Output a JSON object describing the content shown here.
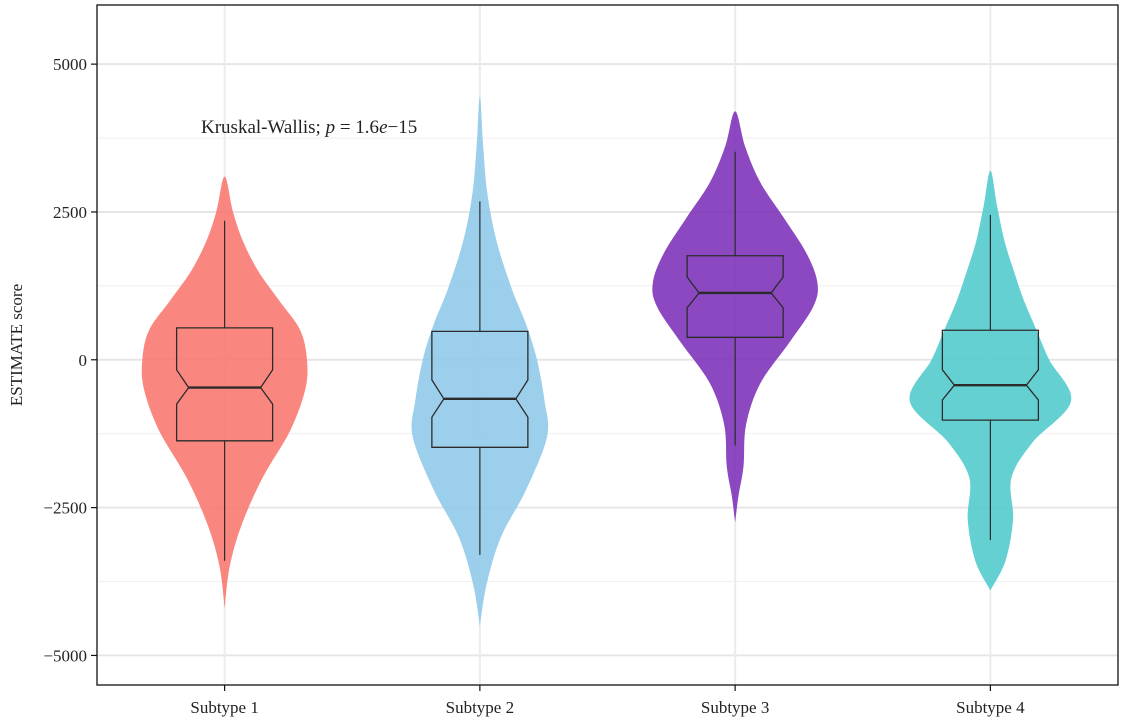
{
  "chart_data": {
    "type": "violin",
    "ylabel": "ESTIMATE score",
    "ylim": [
      -5500,
      6000
    ],
    "yticks": [
      5000,
      2500,
      0,
      -2500,
      -5000
    ],
    "ytick_labels": [
      "5000",
      "2500",
      "0",
      "−2500",
      "−5000"
    ],
    "categories": [
      "Subtype 1",
      "Subtype 2",
      "Subtype 3",
      "Subtype 4"
    ],
    "grid": true,
    "annotation": {
      "prefix": "Kruskal-Wallis; ",
      "p_symbol": "p",
      "middle": " = 1.6",
      "e_symbol": "e",
      "suffix": "−15"
    },
    "series": [
      {
        "name": "Subtype 1",
        "color": "#F8766D",
        "min": -3400,
        "q1": -1370,
        "median": -470,
        "q3": 540,
        "max": 2350,
        "notch_low": -750,
        "notch_high": -170,
        "violin_profile": [
          [
            -4200,
            0
          ],
          [
            -3500,
            0.06
          ],
          [
            -2800,
            0.2
          ],
          [
            -2000,
            0.45
          ],
          [
            -1200,
            0.78
          ],
          [
            -500,
            0.96
          ],
          [
            0,
            0.98
          ],
          [
            500,
            0.9
          ],
          [
            1000,
            0.65
          ],
          [
            1500,
            0.4
          ],
          [
            2000,
            0.22
          ],
          [
            2500,
            0.1
          ],
          [
            3100,
            0
          ]
        ]
      },
      {
        "name": "Subtype 2",
        "color": "#8EC8E8",
        "min": -3300,
        "q1": -1480,
        "median": -660,
        "q3": 480,
        "max": 2680,
        "notch_low": -970,
        "notch_high": -340,
        "violin_profile": [
          [
            -4500,
            0
          ],
          [
            -3800,
            0.08
          ],
          [
            -3000,
            0.25
          ],
          [
            -2200,
            0.55
          ],
          [
            -1300,
            0.8
          ],
          [
            -700,
            0.77
          ],
          [
            0,
            0.68
          ],
          [
            600,
            0.55
          ],
          [
            1200,
            0.38
          ],
          [
            2000,
            0.2
          ],
          [
            2800,
            0.09
          ],
          [
            3600,
            0.04
          ],
          [
            4450,
            0
          ]
        ]
      },
      {
        "name": "Subtype 3",
        "color": "#7B2FB7",
        "min": -1450,
        "q1": 380,
        "median": 1130,
        "q3": 1760,
        "max": 3520,
        "notch_low": 880,
        "notch_high": 1400,
        "violin_profile": [
          [
            -2750,
            0
          ],
          [
            -2300,
            0.04
          ],
          [
            -1800,
            0.1
          ],
          [
            -1100,
            0.13
          ],
          [
            -400,
            0.3
          ],
          [
            300,
            0.65
          ],
          [
            900,
            0.93
          ],
          [
            1300,
            0.98
          ],
          [
            1800,
            0.85
          ],
          [
            2400,
            0.58
          ],
          [
            3000,
            0.3
          ],
          [
            3600,
            0.12
          ],
          [
            4200,
            0
          ]
        ]
      },
      {
        "name": "Subtype 4",
        "color": "#4ECACC",
        "min": -3050,
        "q1": -1020,
        "median": -430,
        "q3": 500,
        "max": 2450,
        "notch_low": -680,
        "notch_high": -170,
        "violin_profile": [
          [
            -3900,
            0
          ],
          [
            -3400,
            0.18
          ],
          [
            -2700,
            0.27
          ],
          [
            -2000,
            0.25
          ],
          [
            -1400,
            0.5
          ],
          [
            -700,
            0.96
          ],
          [
            0,
            0.7
          ],
          [
            500,
            0.55
          ],
          [
            1000,
            0.4
          ],
          [
            1500,
            0.28
          ],
          [
            2000,
            0.17
          ],
          [
            2600,
            0.08
          ],
          [
            3200,
            0
          ]
        ]
      }
    ]
  }
}
